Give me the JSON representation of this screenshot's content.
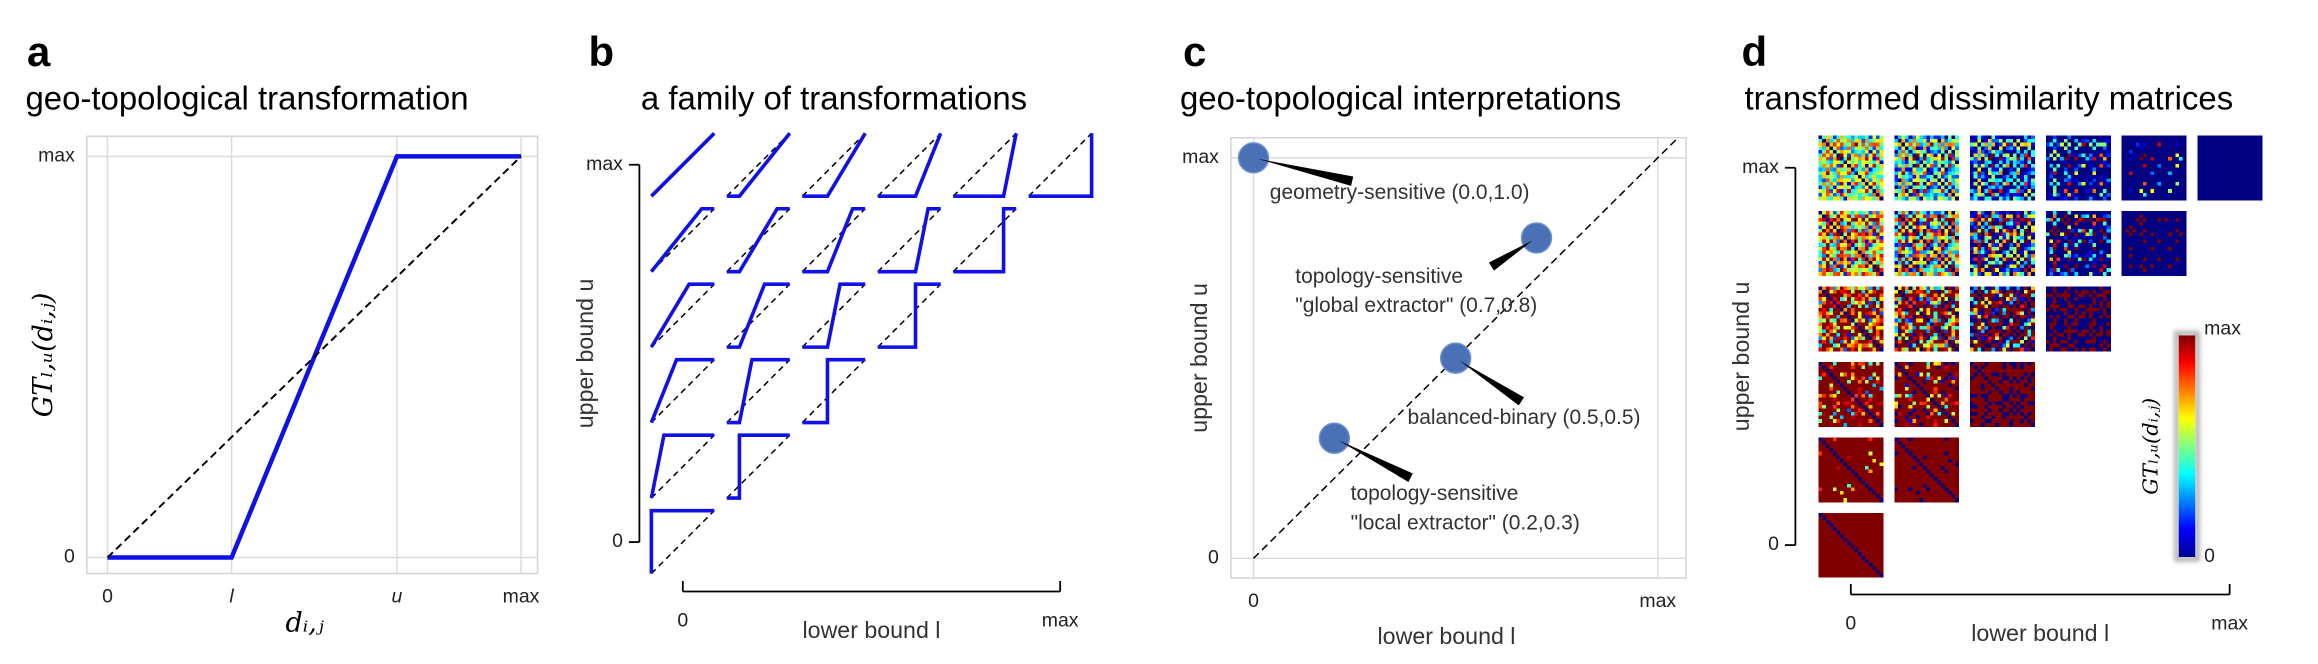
{
  "chart_data": [
    {
      "type": "line",
      "panel": "a",
      "title": "geo-topological transformation",
      "x_label": "dᵢ,ⱼ",
      "y_label": "GTₗ,ᵤ(dᵢ,ⱼ)",
      "xlim": [
        -0.05,
        1.04
      ],
      "ylim": [
        -0.04,
        1.05
      ],
      "xticks": [
        0,
        {
          "value": 0.3,
          "label": "l"
        },
        {
          "value": 0.7,
          "label": "u"
        },
        {
          "value": 1,
          "label": "max"
        }
      ],
      "yticks": [
        0,
        {
          "value": 1,
          "label": "max"
        }
      ],
      "grid": true,
      "series": [
        {
          "x": [
            0,
            0.3,
            0.7,
            1
          ],
          "values": [
            0,
            0,
            1,
            1
          ],
          "color": "#1010e8",
          "style": "solid"
        },
        {
          "x": [
            0,
            1
          ],
          "values": [
            0,
            1
          ],
          "color": "#000000",
          "style": "dashed"
        }
      ]
    },
    {
      "type": "transform_grid",
      "panel": "b",
      "title": "a family of transformations",
      "x_label": "lower bound l",
      "y_label": "upper bound u",
      "xlim": [
        0,
        1
      ],
      "ylim": [
        0,
        1
      ],
      "xticks": [
        0,
        {
          "value": 1,
          "label": "max"
        }
      ],
      "yticks": [
        0,
        {
          "value": 1,
          "label": "max"
        }
      ],
      "l": [
        0,
        0.2,
        0.4,
        0.6,
        0.8,
        1
      ],
      "u": [
        0,
        0.2,
        0.4,
        0.6,
        0.8,
        1
      ],
      "color": "#1010e8"
    },
    {
      "type": "scatter",
      "panel": "c",
      "title": "geo-topological interpretations",
      "x_label": "lower bound l",
      "y_label": "upper bound u",
      "xlim": [
        -0.056,
        1.07
      ],
      "ylim": [
        -0.049,
        1.05
      ],
      "xticks": [
        0,
        {
          "value": 1,
          "label": "max"
        }
      ],
      "yticks": [
        0,
        {
          "value": 1,
          "label": "max"
        }
      ],
      "grid": true,
      "diagonal": true,
      "color": "#4a70b5",
      "x": [
        0,
        0.7,
        0.5,
        0.2
      ],
      "values": [
        1,
        0.8,
        0.5,
        0.3
      ],
      "annotations": [
        [
          "geometry-sensitive (0.0,1.0)"
        ],
        [
          "topology-sensitive",
          "\"global extractor\" (0.7,0.8)"
        ],
        [
          "balanced-binary (0.5,0.5)"
        ],
        [
          "topology-sensitive",
          "\"local extractor\" (0.2,0.3)"
        ]
      ]
    },
    {
      "type": "heatmap_grid",
      "panel": "d",
      "title": "transformed dissimilarity matrices",
      "x_label": "lower bound l",
      "y_label": "upper bound u",
      "xlim": [
        0,
        1
      ],
      "ylim": [
        0,
        1
      ],
      "xticks": [
        0,
        {
          "value": 1,
          "label": "max"
        }
      ],
      "yticks": [
        0,
        {
          "value": 1,
          "label": "max"
        }
      ],
      "l": [
        0,
        0.2,
        0.4,
        0.6,
        0.8,
        1
      ],
      "u": [
        0,
        0.2,
        0.4,
        0.6,
        0.8,
        1
      ],
      "colorbar": {
        "label": "GTₗ,ᵤ(dᵢ,ⱼ)",
        "clim": [
          0,
          1
        ],
        "ticks": [
          0,
          {
            "value": 1,
            "label": "max"
          }
        ],
        "colormap": "jet"
      }
    }
  ]
}
